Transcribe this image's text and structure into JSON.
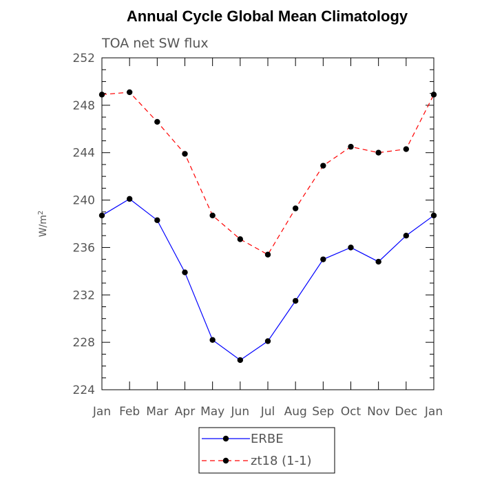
{
  "chart_data": {
    "type": "line",
    "title": "Annual Cycle Global Mean Climatology",
    "subtitle": "TOA net SW flux",
    "ylabel": "W/m",
    "ylabel_superscript": "2",
    "xlabel": "",
    "categories": [
      "Jan",
      "Feb",
      "Mar",
      "Apr",
      "May",
      "Jun",
      "Jul",
      "Aug",
      "Sep",
      "Oct",
      "Nov",
      "Dec",
      "Jan"
    ],
    "ylim": [
      224,
      252
    ],
    "yticks": [
      "224",
      "228",
      "232",
      "236",
      "240",
      "244",
      "248",
      "252"
    ],
    "legend_position": "bottom",
    "series": [
      {
        "name": "ERBE",
        "color": "#0000ff",
        "dash": "solid",
        "values": [
          238.7,
          240.1,
          238.3,
          233.9,
          228.2,
          226.5,
          228.1,
          231.5,
          235.0,
          236.0,
          234.8,
          237.0,
          238.7
        ]
      },
      {
        "name": "zt18 (1-1)",
        "color": "#ff0000",
        "dash": "dashed",
        "values": [
          248.9,
          249.1,
          246.6,
          243.9,
          238.7,
          236.7,
          235.4,
          239.3,
          242.9,
          244.5,
          244.0,
          244.3,
          248.9
        ]
      }
    ]
  }
}
